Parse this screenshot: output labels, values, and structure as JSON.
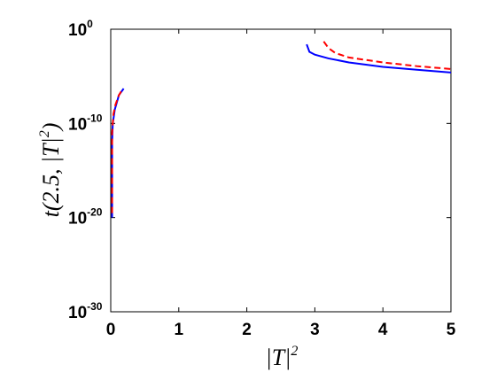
{
  "chart_data": {
    "type": "line",
    "xlabel": [
      "|T|",
      "2"
    ],
    "ylabel": [
      "t(2.5, |T|",
      "2",
      ")"
    ],
    "xlim": [
      0,
      5
    ],
    "xticks": [
      0,
      1,
      2,
      3,
      4,
      5
    ],
    "ylim": [
      1e-30,
      1
    ],
    "log_y": true,
    "yticks": [
      {
        "value": 1e-30,
        "label": "10",
        "exp": "-30"
      },
      {
        "value": 1e-20,
        "label": "10",
        "exp": "-20"
      },
      {
        "value": 1e-10,
        "label": "10",
        "exp": "-10"
      },
      {
        "value": 1,
        "label": "10",
        "exp": "0"
      }
    ],
    "grid": false,
    "series": [
      {
        "color": "#0000ff",
        "style": "solid",
        "x": [
          0.02,
          0.02,
          0.02,
          0.03,
          0.06,
          0.12,
          0.19,
          null,
          2.88,
          2.92,
          3.0,
          3.2,
          3.5,
          4.0,
          4.5,
          5.0
        ],
        "values": [
          1e-20,
          1e-16,
          1e-12,
          1e-10,
          3e-09,
          1e-07,
          5e-07,
          null,
          0.025,
          0.004,
          0.002,
          0.0008,
          0.0003,
          0.0001,
          5e-05,
          2.5e-05
        ]
      },
      {
        "color": "#ff0000",
        "style": "dashed",
        "x": [
          0.02,
          0.02,
          0.02,
          0.04,
          0.07,
          0.12,
          0.18,
          null,
          3.13,
          3.2,
          3.3,
          3.5,
          4.0,
          4.5,
          5.0
        ],
        "values": [
          3e-20,
          1e-15,
          1e-11,
          1e-09,
          1e-08,
          1e-07,
          5e-07,
          null,
          0.05,
          0.01,
          0.003,
          0.001,
          0.0003,
          0.00012,
          6e-05
        ]
      }
    ]
  }
}
